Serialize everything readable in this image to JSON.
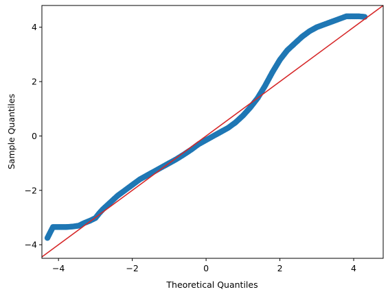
{
  "chart_data": {
    "type": "scatter",
    "title": "",
    "xlabel": "Theoretical Quantiles",
    "ylabel": "Sample Quantiles",
    "xlim": [
      -4.45,
      4.8
    ],
    "ylim": [
      -4.5,
      4.8
    ],
    "x_ticks": [
      -4,
      -2,
      0,
      2,
      4
    ],
    "y_ticks": [
      -4,
      -2,
      0,
      2,
      4
    ],
    "x_tick_labels": [
      "−4",
      "−2",
      "0",
      "2",
      "4"
    ],
    "y_tick_labels": [
      "−4",
      "−2",
      "0",
      "2",
      "4"
    ],
    "grid": false,
    "legend": "none",
    "marker_color": "#1f77b4",
    "reference_line_color": "#d62728",
    "reference_line": {
      "x": [
        -4.45,
        4.8
      ],
      "y": [
        -4.45,
        4.8
      ]
    },
    "series": [
      {
        "points": [
          [
            -4.3,
            -3.75
          ],
          [
            -4.15,
            -3.35
          ],
          [
            -4.0,
            -3.35
          ],
          [
            -3.8,
            -3.35
          ],
          [
            -3.6,
            -3.33
          ],
          [
            -3.45,
            -3.3
          ],
          [
            -3.3,
            -3.2
          ],
          [
            -3.15,
            -3.12
          ],
          [
            -3.0,
            -3.02
          ],
          [
            -2.9,
            -2.85
          ],
          [
            -2.8,
            -2.7
          ],
          [
            -2.6,
            -2.45
          ],
          [
            -2.4,
            -2.2
          ],
          [
            -2.2,
            -2.0
          ],
          [
            -2.0,
            -1.8
          ],
          [
            -1.8,
            -1.6
          ],
          [
            -1.6,
            -1.45
          ],
          [
            -1.4,
            -1.3
          ],
          [
            -1.2,
            -1.15
          ],
          [
            -1.0,
            -1.0
          ],
          [
            -0.8,
            -0.85
          ],
          [
            -0.6,
            -0.68
          ],
          [
            -0.4,
            -0.5
          ],
          [
            -0.2,
            -0.3
          ],
          [
            0.0,
            -0.15
          ],
          [
            0.2,
            0.0
          ],
          [
            0.4,
            0.15
          ],
          [
            0.6,
            0.3
          ],
          [
            0.8,
            0.5
          ],
          [
            1.0,
            0.75
          ],
          [
            1.2,
            1.05
          ],
          [
            1.4,
            1.4
          ],
          [
            1.6,
            1.85
          ],
          [
            1.8,
            2.35
          ],
          [
            2.0,
            2.8
          ],
          [
            2.2,
            3.15
          ],
          [
            2.4,
            3.4
          ],
          [
            2.6,
            3.65
          ],
          [
            2.8,
            3.85
          ],
          [
            3.0,
            4.0
          ],
          [
            3.2,
            4.1
          ],
          [
            3.4,
            4.2
          ],
          [
            3.6,
            4.3
          ],
          [
            3.8,
            4.4
          ],
          [
            4.0,
            4.4
          ],
          [
            4.15,
            4.4
          ],
          [
            4.3,
            4.38
          ]
        ]
      }
    ]
  }
}
